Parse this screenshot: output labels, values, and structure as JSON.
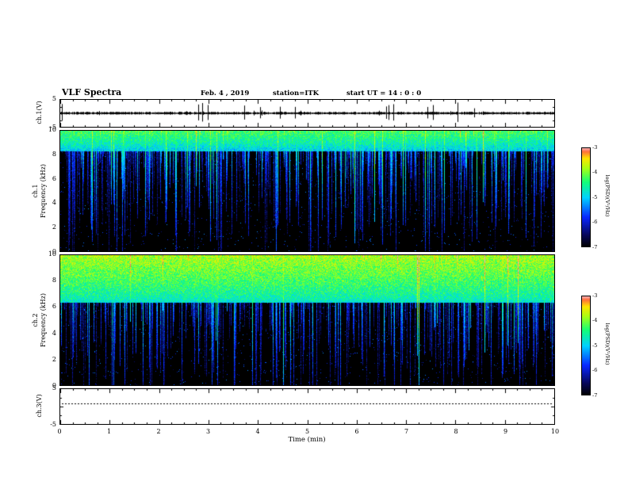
{
  "header": {
    "title": "VLF Spectra",
    "date": "Feb. 4  , 2019",
    "station": "station=ITK",
    "start_ut": "start UT = 14 : 0 : 0"
  },
  "x_axis": {
    "label": "Time (min)",
    "ticks": [
      0,
      1,
      2,
      3,
      4,
      5,
      6,
      7,
      8,
      9,
      10
    ],
    "range": [
      0,
      10
    ]
  },
  "colorbar": {
    "label": "log(PSD)(V²/Hz)",
    "ticks": [
      -3,
      -4,
      -5,
      -6,
      -7
    ],
    "range": [
      -7,
      -3
    ]
  },
  "chart_data": [
    {
      "type": "line",
      "name": "ch1-waveform",
      "ylabel": "ch.1(V)",
      "ylim": [
        -5,
        5
      ],
      "yticks": [
        5,
        -5
      ],
      "xlim": [
        0,
        10
      ],
      "description": "Dense low-amplitude noise trace around 0 V with sporadic impulsive spikes reaching toward ±5 V"
    },
    {
      "type": "heatmap",
      "name": "ch1-spectrogram",
      "channel": "ch.1",
      "ylabel": "Frequency (kHz)",
      "ylim": [
        0,
        10
      ],
      "yticks": [
        10,
        8,
        6,
        4,
        2,
        0
      ],
      "xlim": [
        0,
        10
      ],
      "value_label": "log(PSD)(V²/Hz)",
      "value_range": [
        -7,
        -3
      ],
      "description": "Broadband impulsive sferics: continuous cyan/green band above ~8 kHz, dense blue/green vertical streaks of varying depth over black (-7) background"
    },
    {
      "type": "heatmap",
      "name": "ch2-spectrogram",
      "channel": "ch.2",
      "ylabel": "Frequency (kHz)",
      "ylim": [
        0,
        10
      ],
      "yticks": [
        10,
        8,
        6,
        4,
        2,
        0
      ],
      "xlim": [
        0,
        10
      ],
      "value_label": "log(PSD)(V²/Hz)",
      "value_range": [
        -7,
        -3
      ],
      "description": "Stronger broadband activity: colorful cyan/green/yellow band extending down to ~6.5 kHz with occasional red-hot specks, deep blue streaks below"
    },
    {
      "type": "line",
      "name": "ch3-waveform",
      "ylabel": "ch.3(V)",
      "ylim": [
        -5,
        5
      ],
      "yticks": [
        5,
        -5
      ],
      "xlim": [
        0,
        10
      ],
      "description": "Flat dotted trace slightly above 0 V (inactive channel)"
    }
  ]
}
